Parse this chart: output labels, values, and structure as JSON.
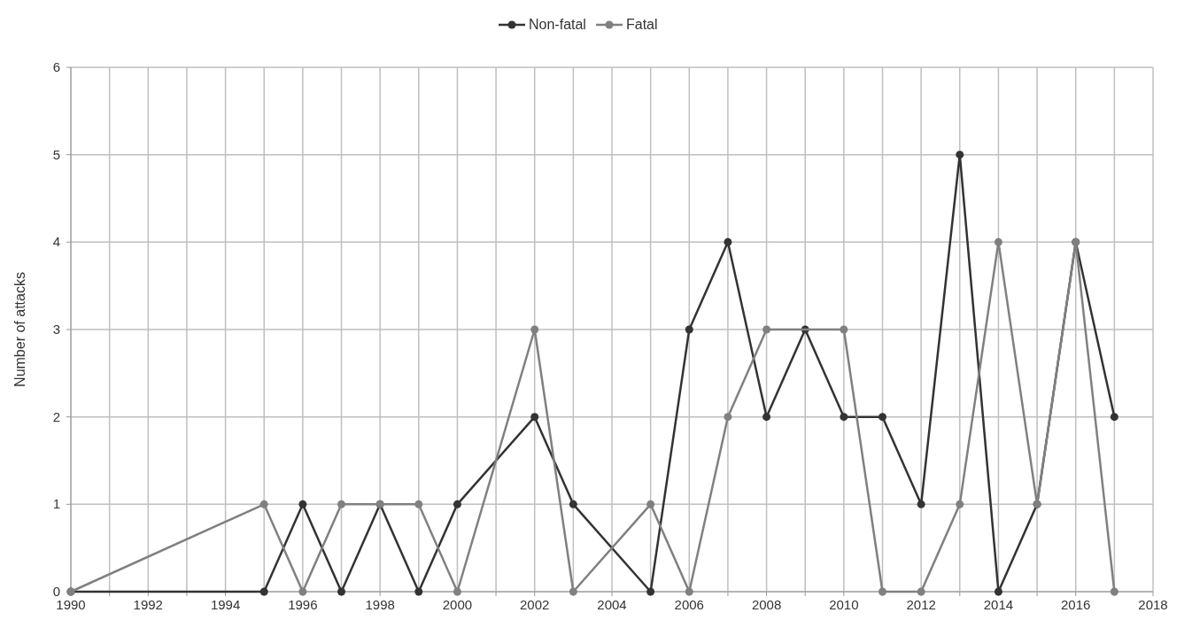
{
  "chart_data": {
    "type": "line",
    "ylabel": "Number of attacks",
    "xlim": [
      1990,
      2018
    ],
    "xticks": [
      1990,
      {
        "value": 1991,
        "label": null
      },
      1992,
      {
        "value": 1993,
        "label": null
      },
      1994,
      {
        "value": 1995,
        "label": null
      },
      1996,
      {
        "value": 1997,
        "label": null
      },
      1998,
      {
        "value": 1999,
        "label": null
      },
      2000,
      {
        "value": 2001,
        "label": null
      },
      2002,
      {
        "value": 2003,
        "label": null
      },
      2004,
      {
        "value": 2005,
        "label": null
      },
      2006,
      {
        "value": 2007,
        "label": null
      },
      2008,
      {
        "value": 2009,
        "label": null
      },
      2010,
      {
        "value": 2011,
        "label": null
      },
      2012,
      {
        "value": 2013,
        "label": null
      },
      2014,
      {
        "value": 2015,
        "label": null
      },
      2016,
      {
        "value": 2017,
        "label": null
      },
      2018
    ],
    "ylim": [
      0,
      6
    ],
    "yticks": [
      0,
      1,
      2,
      3,
      4,
      5,
      6
    ],
    "grid": true,
    "legend": "top",
    "marker": "circle",
    "line_style": "solid",
    "series": [
      {
        "name": "Non-fatal",
        "color": "#333333",
        "x": [
          1990,
          1995,
          1996,
          1997,
          1998,
          1999,
          2000,
          2002,
          2003,
          2005,
          2006,
          2007,
          2008,
          2009,
          2010,
          2011,
          2012,
          2013,
          2014,
          2015,
          2016,
          2017
        ],
        "values": [
          0,
          0,
          1,
          0,
          1,
          0,
          1,
          2,
          1,
          0,
          3,
          4,
          2,
          3,
          2,
          2,
          1,
          5,
          0,
          1,
          4,
          2
        ]
      },
      {
        "name": "Fatal",
        "color": "#808080",
        "x": [
          1990,
          1995,
          1996,
          1997,
          1998,
          1999,
          2000,
          2002,
          2003,
          2005,
          2006,
          2007,
          2008,
          2010,
          2011,
          2012,
          2013,
          2014,
          2015,
          2016,
          2017
        ],
        "values": [
          0,
          1,
          0,
          1,
          1,
          1,
          0,
          3,
          0,
          1,
          0,
          2,
          3,
          3,
          0,
          0,
          1,
          4,
          1,
          4,
          0
        ]
      }
    ]
  }
}
